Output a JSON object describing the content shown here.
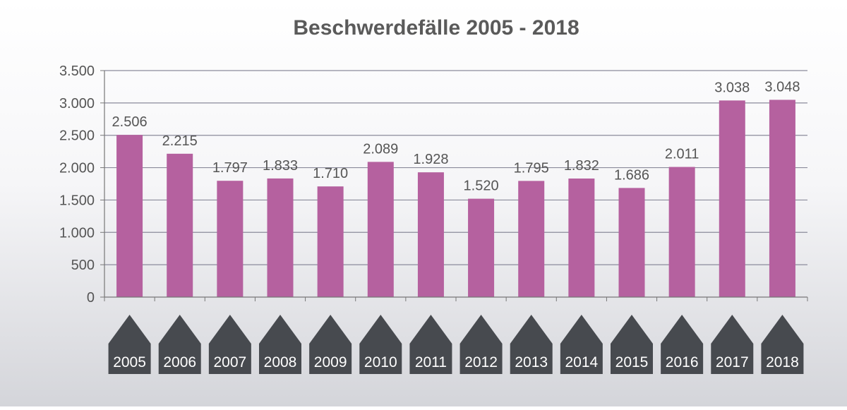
{
  "chart_data": {
    "type": "bar",
    "title": "Beschwerdefälle 2005 - 2018",
    "xlabel": "",
    "ylabel": "",
    "categories": [
      "2005",
      "2006",
      "2007",
      "2008",
      "2009",
      "2010",
      "2011",
      "2012",
      "2013",
      "2014",
      "2015",
      "2016",
      "2017",
      "2018"
    ],
    "values": [
      2506,
      2215,
      1797,
      1833,
      1710,
      2089,
      1928,
      1520,
      1795,
      1832,
      1686,
      2011,
      3038,
      3048
    ],
    "value_labels": [
      "2.506",
      "2.215",
      "1.797",
      "1.833",
      "1.710",
      "2.089",
      "1.928",
      "1.520",
      "1.795",
      "1.832",
      "1.686",
      "2.011",
      "3.038",
      "3.048"
    ],
    "ylim": [
      0,
      3500
    ],
    "yticks": [
      0,
      500,
      1000,
      1500,
      2000,
      2500,
      3000,
      3500
    ],
    "ytick_labels": [
      "0",
      "500",
      "1.000",
      "1.500",
      "2.000",
      "2.500",
      "3.000",
      "3.500"
    ],
    "grid": true,
    "legend": "none",
    "colors": {
      "bar": "#b5619f",
      "grid": "#8b8b9b",
      "axis": "#777777",
      "title": "#5a5a5a",
      "text": "#555555",
      "category_badge": "#474a4f",
      "category_text": "#ffffff"
    }
  }
}
